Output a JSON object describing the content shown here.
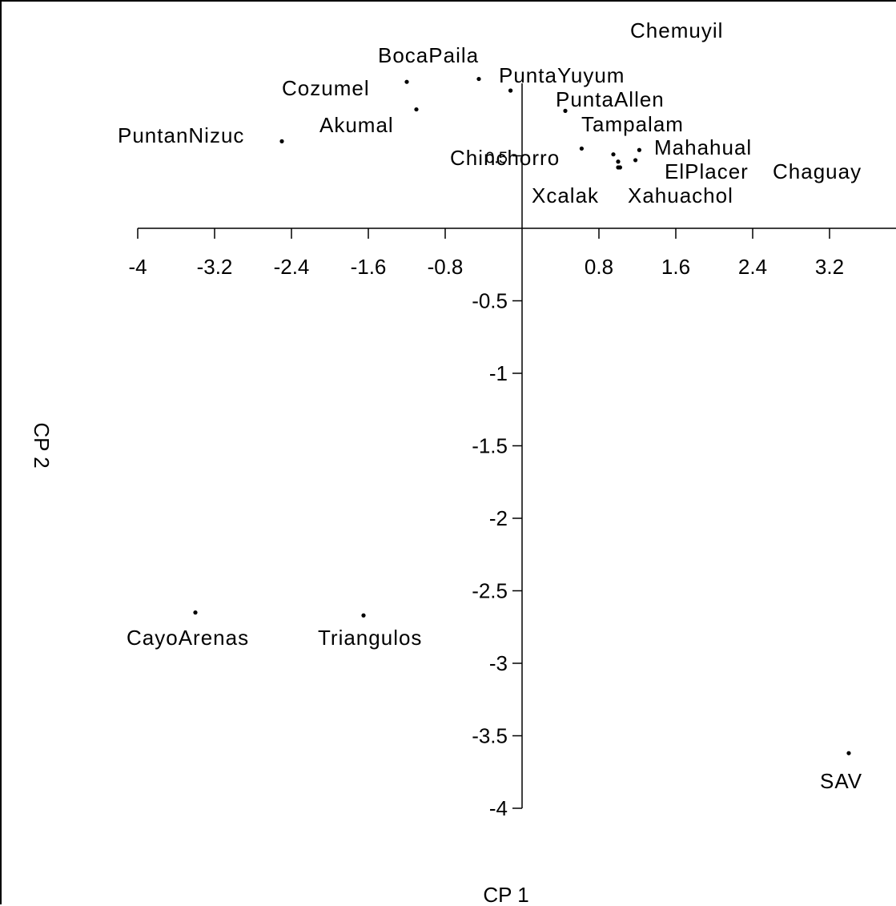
{
  "chart_data": {
    "type": "scatter",
    "title": "",
    "xlabel": "CP 1",
    "ylabel": "CP 2",
    "xlim": [
      -4,
      4
    ],
    "ylim": [
      -4,
      1
    ],
    "x_ticks": [
      -4,
      -3.2,
      -2.4,
      -1.6,
      -0.8,
      0.8,
      1.6,
      2.4,
      3.2
    ],
    "x_tick_labels": [
      "-4",
      "-3.2",
      "-2.4",
      "-1.6",
      "-0.8",
      "0.8",
      "1.6",
      "2.4",
      "3.2"
    ],
    "y_ticks": [
      0.5,
      -0.5,
      -1,
      -1.5,
      -2,
      -2.5,
      -3,
      -3.5,
      -4
    ],
    "y_tick_labels": [
      "0.5",
      "-0.5",
      "-1",
      "-1.5",
      "-2",
      "-2.5",
      "-3",
      "-3.5",
      "-4"
    ],
    "grid": false,
    "points": [
      {
        "label": "Chemuyil",
        "x": -0.12,
        "y": 0.95
      },
      {
        "label": "BocaPaila",
        "x": -0.45,
        "y": 1.03
      },
      {
        "label": "PuntaYuyum",
        "x": -0.12,
        "y": 0.95
      },
      {
        "label": "Cozumel",
        "x": -1.2,
        "y": 1.01
      },
      {
        "label": "PuntaAllen",
        "x": 0.45,
        "y": 0.81
      },
      {
        "label": "Akumal",
        "x": -1.1,
        "y": 0.82
      },
      {
        "label": "PuntanNizuc",
        "x": -2.5,
        "y": 0.6
      },
      {
        "label": "Tampalam",
        "x": 1.22,
        "y": 0.54
      },
      {
        "label": "Chinchorro",
        "x": 0.62,
        "y": 0.55
      },
      {
        "label": "Mahahual",
        "x": 0.95,
        "y": 0.51
      },
      {
        "label": "ElPlacer",
        "x": 1.0,
        "y": 0.46
      },
      {
        "label": "Chaguay",
        "x": 1.02,
        "y": 0.42
      },
      {
        "label": "Xcalak",
        "x": 1.0,
        "y": 0.42
      },
      {
        "label": "Xahuachol",
        "x": 1.18,
        "y": 0.47
      },
      {
        "label": "CayoArenas",
        "x": -3.4,
        "y": -2.65
      },
      {
        "label": "Triangulos",
        "x": -1.65,
        "y": -2.67
      },
      {
        "label": "SAV",
        "x": 3.4,
        "y": -3.62
      }
    ]
  }
}
